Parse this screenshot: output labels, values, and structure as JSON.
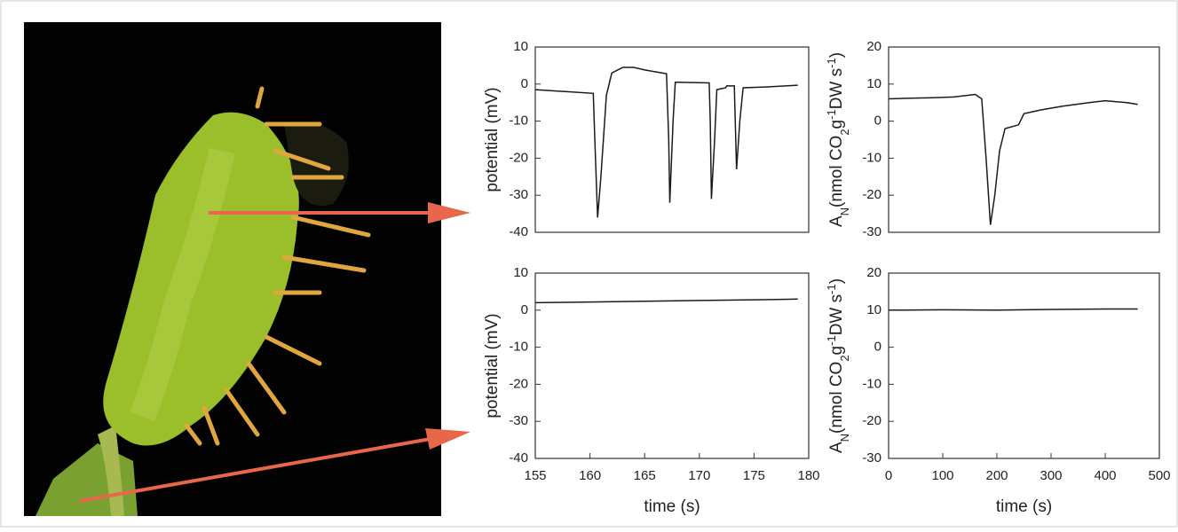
{
  "chart_data": [
    {
      "type": "line",
      "ylabel": [
        "potential (mV)"
      ],
      "xlim": [
        155,
        180
      ],
      "ylim": [
        -40,
        10
      ],
      "yticks": [
        10,
        0,
        -10,
        -20,
        -30,
        -40
      ],
      "color": "#1a1a1a",
      "x": [
        155,
        160.3,
        160.5,
        160.7,
        161.0,
        161.5,
        162,
        163,
        164,
        165,
        167,
        167.2,
        167.3,
        167.6,
        167.8,
        168,
        170.9,
        171,
        171.1,
        171.4,
        171.6,
        172.4,
        172.5,
        173.2,
        173.4,
        173.7,
        174,
        176,
        179
      ],
      "values": [
        -1.5,
        -2.5,
        -20,
        -36,
        -25,
        -3,
        3,
        4.5,
        4.5,
        3.8,
        2.8,
        -15,
        -32,
        -10,
        0.5,
        0.5,
        0.3,
        -10,
        -31,
        -15,
        -1.5,
        -1,
        -0.5,
        -0.5,
        -23,
        -10,
        -1,
        -0.8,
        -0.3
      ]
    },
    {
      "type": "line",
      "ylabel": [
        "A",
        "N",
        "(nmol CO",
        "2",
        "g",
        "-1",
        "DW s",
        "-1",
        ")"
      ],
      "xlim": [
        0,
        500
      ],
      "ylim": [
        -30,
        20
      ],
      "yticks": [
        20,
        10,
        0,
        -10,
        -20,
        -30
      ],
      "color": "#1a1a1a",
      "x": [
        0,
        40,
        80,
        120,
        160,
        172,
        180,
        188,
        196,
        205,
        215,
        240,
        250,
        280,
        320,
        370,
        400,
        440,
        460
      ],
      "values": [
        6,
        6.2,
        6.3,
        6.5,
        7.2,
        6,
        -10,
        -28,
        -20,
        -8,
        -2,
        -1,
        2,
        3,
        4,
        5,
        5.5,
        5,
        4.5
      ]
    },
    {
      "type": "line",
      "ylabel": [
        "potential (mV)"
      ],
      "xlabel": "time (s)",
      "xlim": [
        155,
        180
      ],
      "ylim": [
        -40,
        10
      ],
      "xticks": [
        155,
        160,
        165,
        170,
        175,
        180
      ],
      "yticks": [
        10,
        0,
        -10,
        -20,
        -30,
        -40
      ],
      "color": "#1a1a1a",
      "x": [
        155,
        160,
        165,
        170,
        175,
        179
      ],
      "values": [
        2,
        2.2,
        2.4,
        2.6,
        2.8,
        3
      ]
    },
    {
      "type": "line",
      "ylabel": [
        "A",
        "N",
        "(nmol CO",
        "2",
        "g",
        "-1",
        "DW s",
        "-1",
        ")"
      ],
      "xlabel": "time (s)",
      "xlim": [
        0,
        500
      ],
      "ylim": [
        -30,
        20
      ],
      "xticks": [
        0,
        100,
        200,
        300,
        400,
        500
      ],
      "yticks": [
        20,
        10,
        0,
        -10,
        -20,
        -30
      ],
      "color": "#1a1a1a",
      "x": [
        0,
        100,
        200,
        300,
        400,
        460
      ],
      "values": [
        10,
        10.1,
        10,
        10.2,
        10.3,
        10.3
      ]
    }
  ]
}
